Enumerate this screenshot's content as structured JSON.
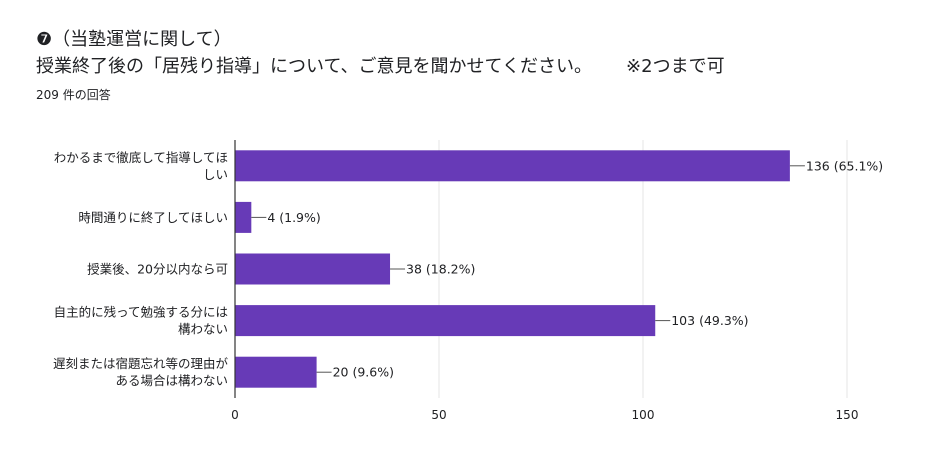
{
  "question": {
    "number_title": "❼（当塾運営に関して）",
    "text": "授業終了後の「居残り指導」について、ご意見を聞かせてください。",
    "note": "※2つまで可",
    "response_count": "209 件の回答"
  },
  "chart_data": {
    "type": "bar",
    "orientation": "horizontal",
    "categories": [
      [
        "わかるまで徹底して指導してほ",
        "しい"
      ],
      [
        "時間通りに終了してほしい"
      ],
      [
        "授業後、20分以内なら可"
      ],
      [
        "自主的に残って勉強する分には",
        "構わない"
      ],
      [
        "遅刻または宿題忘れ等の理由が",
        "ある場合は構わない"
      ]
    ],
    "values": [
      136,
      4,
      38,
      103,
      20
    ],
    "data_labels": [
      "136 (65.1%)",
      "4 (1.9%)",
      "38 (18.2%)",
      "103 (49.3%)",
      "20 (9.6%)"
    ],
    "xlim": [
      0,
      150
    ],
    "x_ticks": [
      0,
      50,
      100,
      150
    ],
    "grid": true,
    "bar_color": "#673ab7"
  }
}
